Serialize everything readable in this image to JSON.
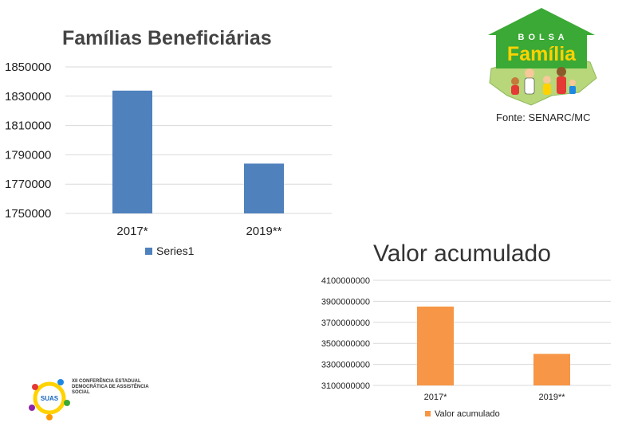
{
  "chart_data": [
    {
      "type": "bar",
      "title": "Famílias Beneficiárias",
      "categories": [
        "2017*",
        "2019**"
      ],
      "series": [
        {
          "name": "Series1",
          "values": [
            1833800,
            1784000
          ],
          "color": "#4f81bd"
        }
      ],
      "yticks": [
        1750000,
        1770000,
        1790000,
        1810000,
        1830000,
        1850000
      ],
      "ylim": [
        1750000,
        1850000
      ],
      "grid": true,
      "legend": "bottom-left",
      "annotation": "Fonte: SENARC/MC"
    },
    {
      "type": "bar",
      "title": "Valor acumulado",
      "categories": [
        "2017*",
        "2019**"
      ],
      "series": [
        {
          "name": "Valor acumulado",
          "values": [
            3850000000,
            3400000000
          ],
          "color": "#f79646"
        }
      ],
      "yticks": [
        3100000000,
        3300000000,
        3500000000,
        3700000000,
        3900000000,
        4100000000
      ],
      "ylim": [
        3100000000,
        4100000000
      ],
      "grid": true,
      "legend": "bottom"
    }
  ],
  "logos": {
    "bolsa_familia": {
      "top": "B O L S A",
      "main": "Família",
      "colors": {
        "green": "#3aa935",
        "yellow": "#ffd200",
        "land": "#b7d77a"
      }
    },
    "suas": {
      "mark": "SUAS",
      "text": "XII CONFERÊNCIA ESTADUAL DEMOCRÁTICA DE ASSISTÊNCIA SOCIAL"
    }
  }
}
